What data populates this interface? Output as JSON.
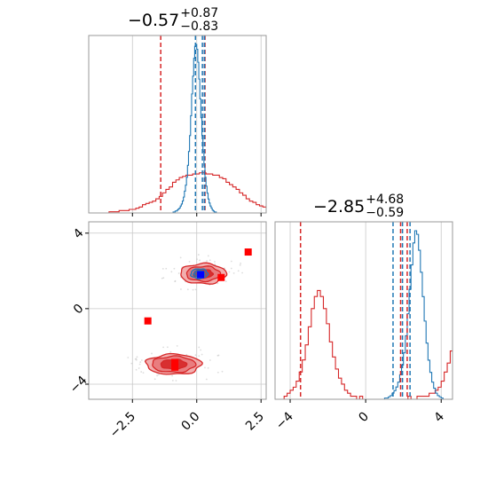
{
  "titles": {
    "p1": {
      "value": "−0.57",
      "plus": "+0.87",
      "minus": "−0.83"
    },
    "p2": {
      "value": "−2.85",
      "plus": "+4.68",
      "minus": "−0.59"
    }
  },
  "colors": {
    "red": "#d62728",
    "red_light": "#f0a0a0",
    "red_mid": "#e5484a",
    "blue": "#1f77b4",
    "marker": "#ff0000",
    "marker_blue": "#0000ff"
  },
  "chart_data": {
    "type": "corner",
    "parameters": [
      {
        "range": [
          -4.2,
          2.7
        ],
        "ticks": [
          -2.5,
          0.0,
          2.5
        ],
        "tick_labels": [
          "−2.5",
          "0.0",
          "2.5"
        ]
      },
      {
        "range": [
          -4.8,
          4.6
        ],
        "ticks": [
          -4,
          0,
          4
        ],
        "tick_labels": [
          "−4",
          "0",
          "4"
        ]
      }
    ],
    "grid": true,
    "marginal_1": {
      "red_quantiles": [
        -1.4,
        0.3,
        0.32
      ],
      "blue_quantiles": [
        -0.05,
        0.22,
        0.3
      ],
      "red_hist": {
        "edges_start": -3.8,
        "bin_width": 0.13,
        "counts": [
          0,
          0,
          0,
          1,
          1,
          1,
          2,
          2,
          2,
          3,
          3,
          4,
          5,
          7,
          8,
          9,
          10,
          12,
          14,
          17,
          20,
          22,
          26,
          28,
          30,
          31,
          32,
          32,
          33,
          33,
          34,
          34,
          33,
          33,
          32,
          32,
          30,
          29,
          26,
          24,
          22,
          20,
          17,
          15,
          12,
          10,
          9,
          7,
          6,
          5,
          4,
          4,
          3,
          2,
          2,
          1,
          1,
          1,
          0,
          0,
          0
        ]
      },
      "blue_hist": {
        "edges_start": -1.0,
        "bin_width": 0.04,
        "counts": [
          0,
          0,
          1,
          1,
          2,
          2,
          3,
          4,
          5,
          7,
          9,
          12,
          16,
          22,
          28,
          36,
          48,
          62,
          78,
          98,
          120,
          138,
          156,
          168,
          170,
          165,
          152,
          135,
          115,
          96,
          78,
          62,
          48,
          36,
          27,
          20,
          14,
          10,
          7,
          5,
          3,
          2,
          1,
          1,
          0
        ]
      }
    },
    "marginal_2": {
      "red_quantiles": [
        -3.45,
        1.85,
        2.2
      ],
      "blue_quantiles": [
        1.45,
        1.95,
        2.35
      ],
      "red_hist": {
        "edges_start": -4.8,
        "bin_width": 0.16,
        "counts": [
          0,
          0,
          0,
          1,
          2,
          3,
          4,
          6,
          9,
          13,
          18,
          24,
          30,
          34,
          36,
          34,
          30,
          25,
          19,
          14,
          10,
          7,
          5,
          3,
          2,
          1,
          1,
          0,
          1,
          0,
          0,
          0,
          0,
          0,
          0,
          0,
          0,
          0,
          0,
          0,
          0,
          0,
          0,
          0,
          1,
          0,
          0,
          1,
          1,
          1,
          1,
          2,
          2,
          3,
          4,
          6,
          9,
          12,
          16,
          20,
          23,
          20,
          16,
          12,
          8,
          5,
          3,
          2,
          1,
          0,
          0,
          0
        ]
      },
      "blue_hist": {
        "edges_start": -0.2,
        "bin_width": 0.1,
        "counts": [
          0,
          0,
          0,
          0,
          0,
          0,
          0,
          0,
          0,
          0,
          0,
          0,
          1,
          1,
          2,
          3,
          5,
          7,
          10,
          14,
          20,
          28,
          38,
          52,
          70,
          90,
          110,
          128,
          138,
          135,
          122,
          104,
          84,
          64,
          46,
          32,
          22,
          14,
          9,
          5,
          3,
          2,
          1,
          0,
          0,
          0
        ]
      }
    },
    "joint": {
      "red_modes": [
        {
          "center": [
            -0.9,
            -2.95
          ],
          "sigma": [
            0.9,
            0.45
          ],
          "levels": [
            0.95,
            0.75,
            0.45
          ]
        },
        {
          "center": [
            0.25,
            1.85
          ],
          "sigma": [
            0.75,
            0.45
          ],
          "levels": [
            0.95,
            0.7,
            0.4
          ]
        }
      ],
      "blue_mode": {
        "center": [
          0.1,
          1.85
        ],
        "sigma": [
          0.28,
          0.22
        ],
        "levels": [
          0.95,
          0.6
        ]
      },
      "red_points": [
        [
          2.0,
          3.0
        ],
        [
          -1.9,
          -0.65
        ],
        [
          0.95,
          1.65
        ],
        [
          -0.85,
          -2.85
        ],
        [
          -0.85,
          -3.1
        ]
      ],
      "blue_points": [
        [
          0.15,
          1.8
        ]
      ]
    }
  }
}
